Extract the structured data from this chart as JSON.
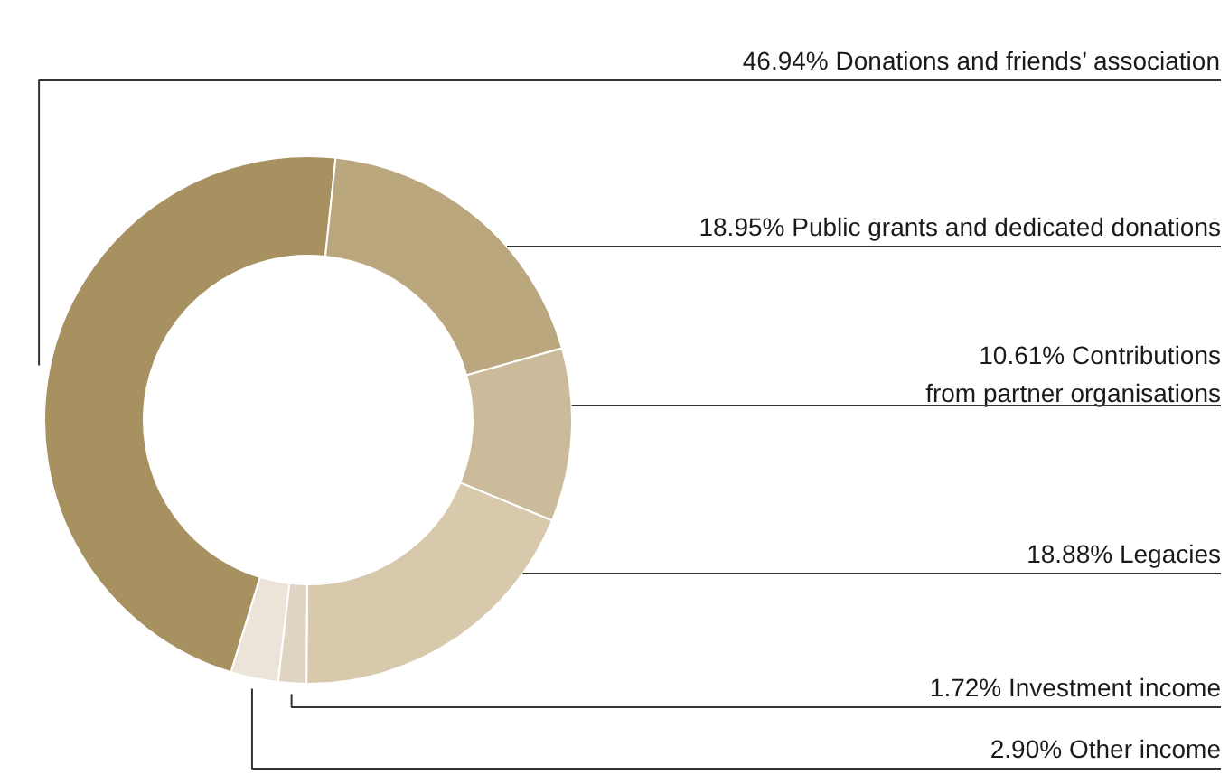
{
  "chart_data": {
    "type": "donut",
    "categories": [
      "Donations and friends’ association",
      "Public grants and dedicated donations",
      "Contributions\nfrom partner organisations",
      "Legacies",
      "Investment income",
      "Other income"
    ],
    "values": [
      46.94,
      18.95,
      10.61,
      18.88,
      1.72,
      2.9
    ],
    "value_labels": [
      "46.94%",
      "18.95%",
      "10.61%",
      "18.88%",
      "1.72%",
      "2.90%"
    ],
    "colors": [
      "#a89160",
      "#bba77d",
      "#cbbb9a",
      "#d8c9ad",
      "#e0d5c2",
      "#ede4d9"
    ]
  }
}
